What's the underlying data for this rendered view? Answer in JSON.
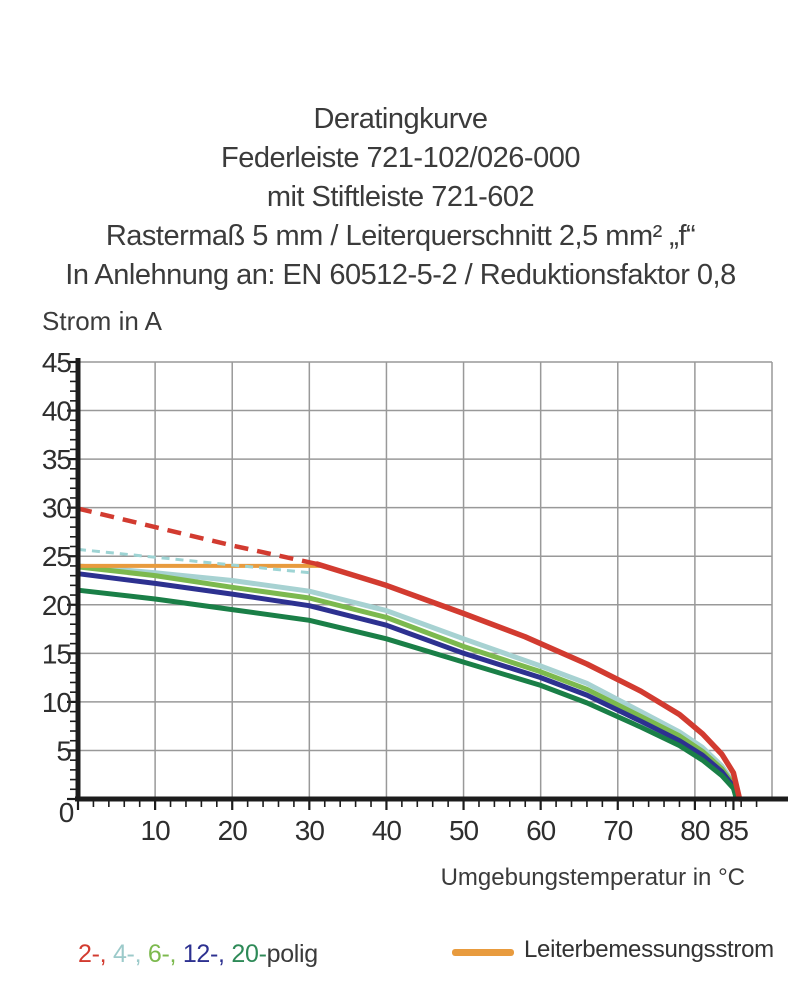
{
  "title_lines": [
    "Deratingkurve",
    "Federleiste 721-102/026-000",
    "mit Stiftleiste 721-602",
    "Rastermaß 5 mm / Leiterquerschnitt 2,5 mm² „f“",
    "In Anlehnung an: EN 60512-5-2 / Reduktionsfaktor 0,8"
  ],
  "chart_data": {
    "type": "line",
    "title": "Deratingkurve",
    "xlabel": "Umgebungstemperatur in °C",
    "ylabel": "Strom in A",
    "xlim": [
      0,
      90
    ],
    "ylim": [
      0,
      45
    ],
    "grid": true,
    "grid_color": "#999999",
    "axis_color": "#1c1c1c",
    "tick_label_color": "#2e2e2e",
    "x_major_ticks": [
      0,
      10,
      20,
      30,
      40,
      50,
      60,
      70,
      80,
      85
    ],
    "x_gridlines": [
      10,
      20,
      30,
      40,
      50,
      60,
      70,
      80
    ],
    "x_minor_step": 2,
    "y_major_ticks": [
      0,
      5,
      10,
      15,
      20,
      25,
      30,
      35,
      40,
      45
    ],
    "y_minor_step": 1,
    "series": [
      {
        "name": "4-polig",
        "color": "#a7d2d2",
        "width": 5,
        "dash": null,
        "points": [
          [
            0,
            24.0
          ],
          [
            10,
            23.3
          ],
          [
            20,
            22.5
          ],
          [
            30,
            21.4
          ],
          [
            40,
            19.4
          ],
          [
            50,
            16.5
          ],
          [
            60,
            13.7
          ],
          [
            66,
            11.9
          ],
          [
            73,
            9.0
          ],
          [
            78,
            6.9
          ],
          [
            81,
            5.3
          ],
          [
            83.5,
            3.4
          ],
          [
            85,
            1.7
          ],
          [
            85.5,
            0
          ]
        ]
      },
      {
        "name": "6-polig",
        "color": "#7cb94e",
        "width": 5,
        "dash": null,
        "points": [
          [
            0,
            23.9
          ],
          [
            10,
            23.0
          ],
          [
            20,
            21.8
          ],
          [
            30,
            20.7
          ],
          [
            40,
            18.7
          ],
          [
            50,
            15.7
          ],
          [
            60,
            13.1
          ],
          [
            66,
            11.3
          ],
          [
            73,
            8.5
          ],
          [
            78,
            6.5
          ],
          [
            81,
            4.9
          ],
          [
            83.5,
            3.1
          ],
          [
            85,
            1.5
          ],
          [
            85.5,
            0
          ]
        ]
      },
      {
        "name": "12-polig",
        "color": "#2d3190",
        "width": 5,
        "dash": null,
        "points": [
          [
            0,
            23.2
          ],
          [
            10,
            22.2
          ],
          [
            20,
            21.1
          ],
          [
            30,
            19.9
          ],
          [
            40,
            17.9
          ],
          [
            50,
            15.0
          ],
          [
            60,
            12.5
          ],
          [
            66,
            10.7
          ],
          [
            73,
            8.0
          ],
          [
            78,
            6.0
          ],
          [
            81,
            4.5
          ],
          [
            83.5,
            2.8
          ],
          [
            85,
            1.3
          ],
          [
            85.4,
            0
          ]
        ]
      },
      {
        "name": "20-polig",
        "color": "#1a7f47",
        "width": 5,
        "dash": null,
        "points": [
          [
            0,
            21.5
          ],
          [
            10,
            20.6
          ],
          [
            20,
            19.5
          ],
          [
            30,
            18.4
          ],
          [
            40,
            16.5
          ],
          [
            50,
            14.1
          ],
          [
            60,
            11.7
          ],
          [
            66,
            9.9
          ],
          [
            73,
            7.4
          ],
          [
            78,
            5.5
          ],
          [
            81,
            4.0
          ],
          [
            83.5,
            2.4
          ],
          [
            85,
            1.1
          ],
          [
            85.4,
            0
          ]
        ]
      },
      {
        "name": "Leiterbemessungsstrom",
        "color": "#e89b3e",
        "width": 4,
        "dash": null,
        "points": [
          [
            0,
            24.0
          ],
          [
            31.5,
            24.0
          ]
        ]
      },
      {
        "name": "4-polig (oberhalb Leiterbemessungsstrom)",
        "color": "#9ed4d4",
        "width": 3,
        "dash": "8 6",
        "points": [
          [
            0,
            25.7
          ],
          [
            10,
            24.9
          ],
          [
            20,
            24.1
          ],
          [
            30,
            23.3
          ]
        ]
      },
      {
        "name": "2-polig (oberhalb Leiterbemessungsstrom)",
        "color": "#d23b30",
        "width": 4.5,
        "dash": "14 9",
        "points": [
          [
            0,
            29.9
          ],
          [
            10,
            28.0
          ],
          [
            20,
            26.1
          ],
          [
            31,
            24.2
          ]
        ]
      },
      {
        "name": "2-polig",
        "color": "#d23b30",
        "width": 5.5,
        "dash": null,
        "points": [
          [
            31,
            24.2
          ],
          [
            40,
            22.0
          ],
          [
            50,
            19.1
          ],
          [
            58,
            16.7
          ],
          [
            66,
            13.9
          ],
          [
            73,
            11.1
          ],
          [
            78,
            8.7
          ],
          [
            81,
            6.7
          ],
          [
            83.5,
            4.6
          ],
          [
            85,
            2.7
          ],
          [
            85.8,
            0
          ]
        ]
      }
    ]
  },
  "legend": {
    "poles": [
      {
        "label": "2-,",
        "color": "#d23b30"
      },
      {
        "label": "4-,",
        "color": "#9ccaca"
      },
      {
        "label": "6-,",
        "color": "#7cb94e"
      },
      {
        "label": "12-,",
        "color": "#2d3190"
      },
      {
        "label": "20-",
        "color": "#2e8a58"
      }
    ],
    "poles_suffix": "polig",
    "rated_label": "Leiterbemessungsstrom",
    "rated_color": "#e89b3e"
  }
}
